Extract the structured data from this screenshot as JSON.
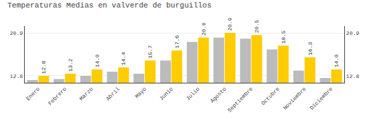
{
  "chart_data": {
    "type": "bar",
    "title": "Temperaturas Medias en valverde de burguillos",
    "categories": [
      "Enero",
      "Febrero",
      "Marzo",
      "Abril",
      "Mayo",
      "Junio",
      "Julio",
      "Agosto",
      "Septiembre",
      "Octubre",
      "Noviembre",
      "Diciembre"
    ],
    "series": [
      {
        "color": "#BBBBBB",
        "values": [
          12.0,
          12.2,
          12.8,
          13.6,
          13.2,
          15.7,
          19.2,
          20.0,
          19.8,
          17.8,
          13.8,
          12.4
        ]
      },
      {
        "color": "#FFCC00",
        "values": [
          12.8,
          13.2,
          14.0,
          14.4,
          15.7,
          17.6,
          20.0,
          20.9,
          20.5,
          18.5,
          16.3,
          14.0
        ],
        "data_labels": true,
        "value_labels": [
          "12.8",
          "13.2",
          "14.0",
          "14.4",
          "15.7",
          "17.6",
          "20.0",
          "20.9",
          "20.5",
          "18.5",
          "16.3",
          "14.0"
        ]
      }
    ],
    "ylim": [
      11.5,
      22.2
    ],
    "yticks": [
      12.8,
      20.9
    ],
    "y2lim": [
      11.5,
      22.2
    ],
    "y2ticks": [
      12.8,
      20.9
    ],
    "grid": true
  }
}
